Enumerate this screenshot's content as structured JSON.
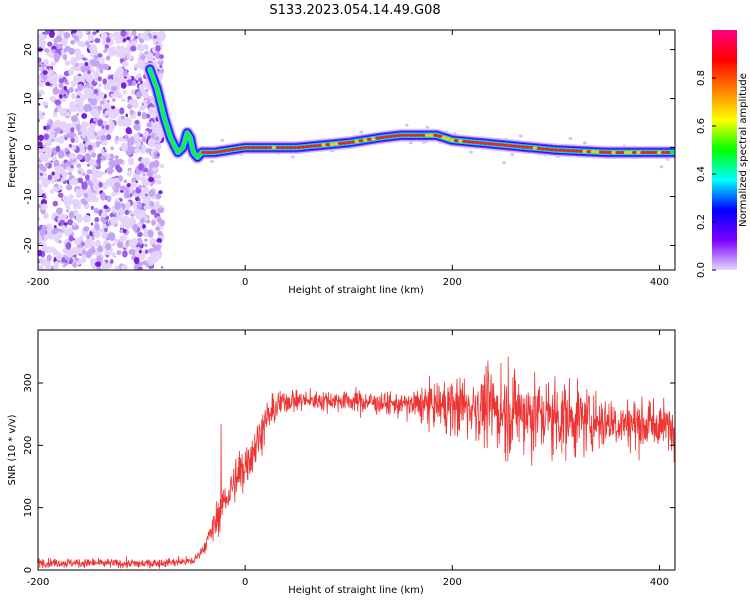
{
  "title": "S133.2023.054.14.49.G08",
  "chart_data": [
    {
      "type": "heatmap",
      "xlabel": "Height of straight line (km)",
      "ylabel": "Frequency (Hz)",
      "xlim": [
        -200,
        415
      ],
      "ylim": [
        -25,
        24
      ],
      "x_ticks": [
        "-200",
        "0",
        "200",
        "400"
      ],
      "y_ticks": [
        "20",
        "10",
        "0",
        "-10",
        "-20"
      ],
      "colorbar": {
        "label": "Normalized spectral amplitude",
        "range": [
          0,
          1
        ],
        "ticks": [
          "0.0",
          "0.2",
          "0.4",
          "0.6",
          "0.8"
        ],
        "colors": [
          "#e6d6ff",
          "#7a00ff",
          "#0000ff",
          "#00ffff",
          "#00ff00",
          "#ffff00",
          "#ff8000",
          "#ff0000",
          "#ff0080"
        ]
      },
      "ridge": {
        "x": [
          -92,
          -85,
          -78,
          -72,
          -65,
          -60,
          -56,
          -53,
          -50,
          -46,
          -42,
          -30,
          0,
          50,
          100,
          130,
          150,
          185,
          200,
          250,
          300,
          350,
          415
        ],
        "y": [
          16,
          12,
          6,
          2,
          -1,
          0,
          3,
          2,
          -1,
          -2,
          -1,
          -1,
          0,
          0,
          1,
          2,
          2.5,
          2.5,
          1.5,
          0.5,
          -0.5,
          -1,
          -1
        ]
      },
      "noise_region_x": [
        -200,
        -80
      ]
    },
    {
      "type": "line",
      "xlabel": "Height of straight line (km)",
      "ylabel": "SNR (10 * v/v)",
      "xlim": [
        -200,
        415
      ],
      "ylim": [
        0,
        385
      ],
      "x_ticks": [
        "-200",
        "0",
        "200",
        "400"
      ],
      "y_ticks": [
        "0",
        "100",
        "200",
        "300"
      ],
      "color": "#ee3333",
      "trend": {
        "x": [
          -200,
          -100,
          -50,
          -40,
          -30,
          -20,
          -10,
          0,
          10,
          20,
          30,
          40,
          50,
          100,
          150,
          180,
          220,
          260,
          300,
          350,
          415
        ],
        "y": [
          12,
          10,
          14,
          35,
          70,
          110,
          140,
          170,
          200,
          240,
          262,
          272,
          272,
          272,
          265,
          265,
          262,
          255,
          245,
          238,
          230
        ]
      },
      "spread": {
        "x": [
          -200,
          -40,
          -30,
          0,
          30,
          50,
          150,
          200,
          250,
          300,
          350,
          415
        ],
        "y": [
          6,
          6,
          20,
          30,
          20,
          12,
          15,
          35,
          55,
          50,
          35,
          28
        ]
      }
    }
  ]
}
